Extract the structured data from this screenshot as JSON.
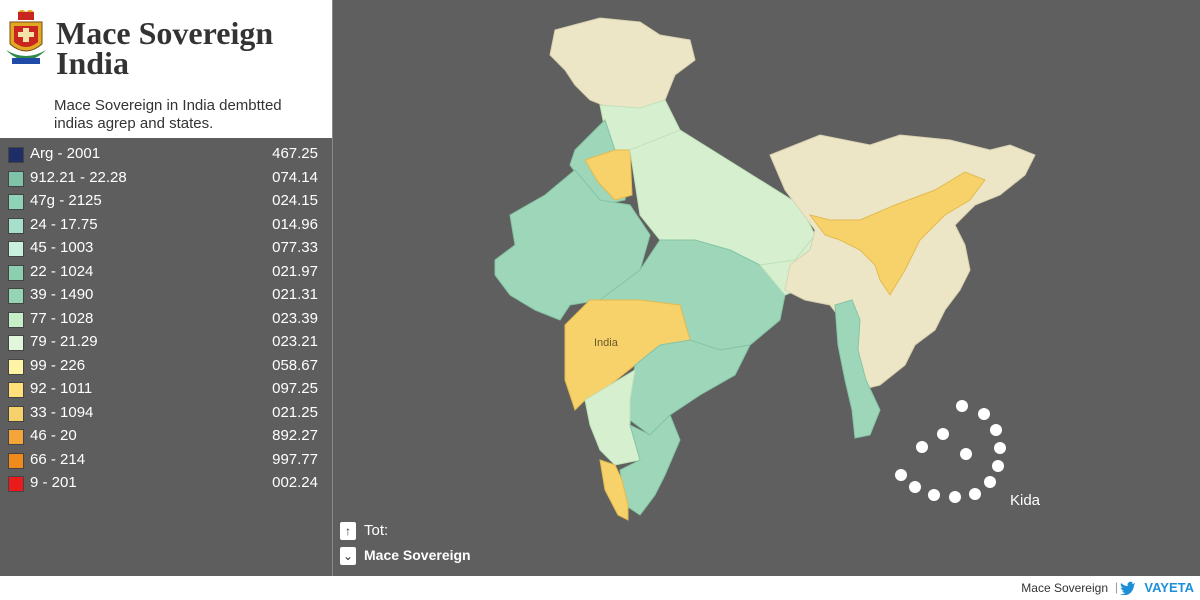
{
  "header": {
    "title": "Mace Sovereign India",
    "subtitle": "Mace Sovereign in India dembtted indias agrep and states."
  },
  "legend": [
    {
      "range": "Arg - 2001",
      "value": "467.25",
      "color": "#1f2e66"
    },
    {
      "range": "912.21 - 22.28",
      "value": "074.14",
      "color": "#7fc4a8"
    },
    {
      "range": "47g - 2125",
      "value": "024.15",
      "color": "#8fd2b8"
    },
    {
      "range": "24 - 17.75",
      "value": "014.96",
      "color": "#a6e0cb"
    },
    {
      "range": "45 - 1003",
      "value": "077.33",
      "color": "#c8f0dc"
    },
    {
      "range": "22 - 1024",
      "value": "021.97",
      "color": "#8ccfb0"
    },
    {
      "range": "39 - 1490",
      "value": "021.31",
      "color": "#95d4b5"
    },
    {
      "range": "77 - 1028",
      "value": "023.39",
      "color": "#c6efc8"
    },
    {
      "range": "79 - 21.29",
      "value": "023.21",
      "color": "#e2f6dc"
    },
    {
      "range": "99 - 226",
      "value": "058.67",
      "color": "#fff3a6"
    },
    {
      "range": "92 - 1011",
      "value": "097.25",
      "color": "#ffe07a"
    },
    {
      "range": "33 - 1094",
      "value": "021.25",
      "color": "#f6d16a"
    },
    {
      "range": "46 - 20",
      "value": "892.27",
      "color": "#f3a53a"
    },
    {
      "range": "66 - 214",
      "value": "997.77",
      "color": "#f08a1c"
    },
    {
      "range": "9 - 201",
      "value": "002.24",
      "color": "#e81c1c"
    }
  ],
  "map": {
    "region_label": "India",
    "circle_label": "Kida",
    "colors": {
      "beige": "#ece6c6",
      "mint": "#9ed6b9",
      "pale_green": "#d6f0cf",
      "yellow": "#f7d26a"
    }
  },
  "nav": {
    "up_label": "Tot:",
    "down_label": "Mace Sovereign",
    "up_icon": "arrow-up-icon",
    "down_icon": "chevron-down-icon"
  },
  "footer": {
    "text": "Mace Sovereign",
    "brand": "VAYETA",
    "icon": "bird-icon"
  }
}
